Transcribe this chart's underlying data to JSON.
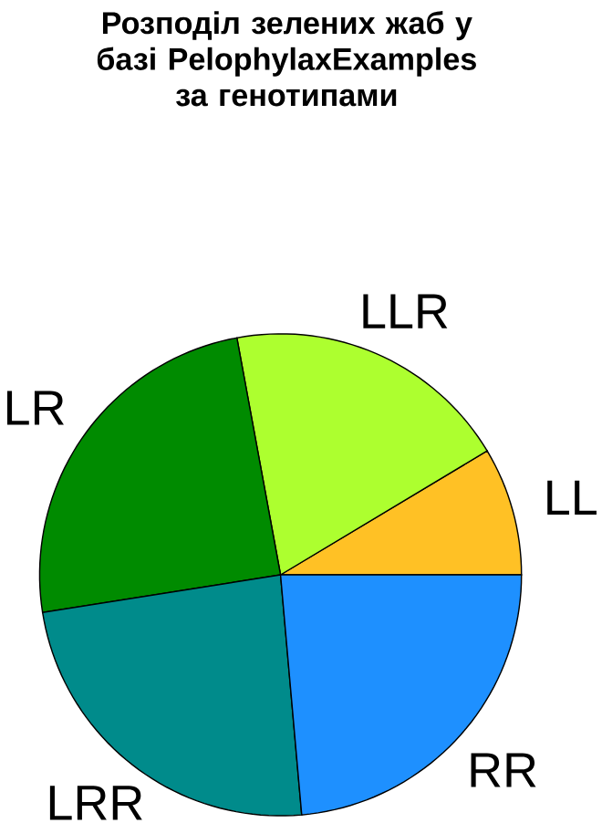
{
  "chart_data": {
    "type": "pie",
    "title": "Розподіл зелених жаб у базі PelophylaxExamples за генотипами",
    "categories": [
      "LL",
      "LLR",
      "LR",
      "LRR",
      "RR"
    ],
    "values": [
      8.6,
      19.3,
      24.6,
      23.9,
      23.6
    ],
    "colors": [
      "#ffc125",
      "#adff2f",
      "#008b00",
      "#008b8b",
      "#1e90ff"
    ]
  }
}
